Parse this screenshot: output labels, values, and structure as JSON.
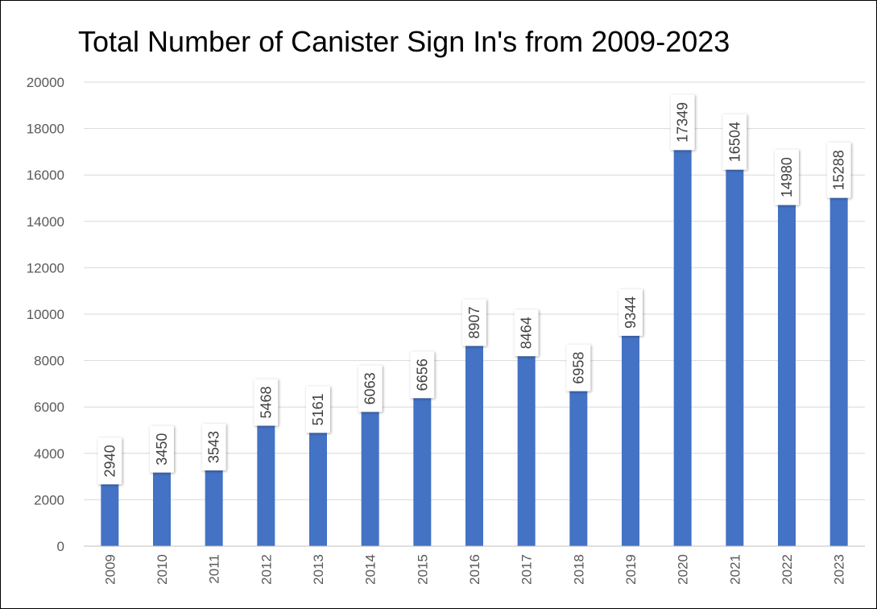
{
  "chart_data": {
    "type": "bar",
    "title": "Total Number of Canister Sign In's from 2009-2023",
    "xlabel": "",
    "ylabel": "",
    "categories": [
      "2009",
      "2010",
      "2011",
      "2012",
      "2013",
      "2014",
      "2015",
      "2016",
      "2017",
      "2018",
      "2019",
      "2020",
      "2021",
      "2022",
      "2023"
    ],
    "values": [
      2940,
      3450,
      3543,
      5468,
      5161,
      6063,
      6656,
      8907,
      8464,
      6958,
      9344,
      17349,
      16504,
      14980,
      15288
    ],
    "ylim": [
      0,
      20000
    ],
    "yticks": [
      0,
      2000,
      4000,
      6000,
      8000,
      10000,
      12000,
      14000,
      16000,
      18000,
      20000
    ],
    "grid": true,
    "legend": "none",
    "bar_color": "#4472C4",
    "gridline_color": "#D9D9D9"
  }
}
